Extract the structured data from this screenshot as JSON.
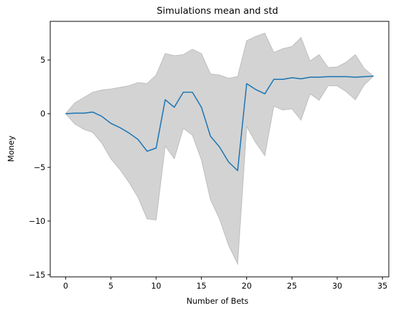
{
  "chart_data": {
    "type": "line",
    "title": "Simulations mean and std",
    "xlabel": "Number of Bets",
    "ylabel": "Money",
    "xlim": [
      -1.7,
      35.7
    ],
    "ylim": [
      -15.2,
      8.6
    ],
    "xticks": [
      0,
      5,
      10,
      15,
      20,
      25,
      30,
      35
    ],
    "yticks": [
      -15,
      -10,
      -5,
      0,
      5
    ],
    "ytick_labels": [
      "−15",
      "−10",
      "−5",
      "0",
      "5"
    ],
    "grid": false,
    "colors": {
      "line": "#1f77b4",
      "band": "#d3d3d3",
      "band_edge": "#bdbdbd"
    },
    "x": [
      0,
      1,
      2,
      3,
      4,
      5,
      6,
      7,
      8,
      9,
      10,
      11,
      12,
      13,
      14,
      15,
      16,
      17,
      18,
      19,
      20,
      21,
      22,
      23,
      24,
      25,
      26,
      27,
      28,
      29,
      30,
      31,
      32,
      33,
      34
    ],
    "series": [
      {
        "mean": [
          0,
          0.05,
          0.05,
          0.15,
          -0.25,
          -0.9,
          -1.3,
          -1.8,
          -2.4,
          -3.5,
          -3.2,
          1.3,
          0.6,
          2.0,
          2.0,
          0.6,
          -2.1,
          -3.1,
          -4.5,
          -5.3,
          2.8,
          2.25,
          1.85,
          3.2,
          3.2,
          3.35,
          3.25,
          3.4,
          3.4,
          3.45,
          3.45,
          3.45,
          3.4,
          3.45,
          3.5
        ],
        "upper": [
          0,
          1.0,
          1.5,
          2.0,
          2.2,
          2.3,
          2.45,
          2.6,
          2.9,
          2.8,
          3.6,
          5.6,
          5.4,
          5.5,
          6.0,
          5.6,
          3.7,
          3.6,
          3.3,
          3.45,
          6.8,
          7.2,
          7.5,
          5.7,
          6.05,
          6.25,
          7.1,
          4.9,
          5.5,
          4.3,
          4.35,
          4.8,
          5.5,
          4.2,
          3.5
        ],
        "lower": [
          0,
          -0.95,
          -1.45,
          -1.75,
          -2.75,
          -4.2,
          -5.2,
          -6.4,
          -7.8,
          -9.8,
          -9.9,
          -3.0,
          -4.2,
          -1.35,
          -2.0,
          -4.3,
          -8.0,
          -9.8,
          -12.25,
          -14.0,
          -1.2,
          -2.7,
          -3.9,
          0.7,
          0.35,
          0.45,
          -0.6,
          1.85,
          1.25,
          2.6,
          2.6,
          2.05,
          1.3,
          2.7,
          3.5
        ]
      }
    ]
  }
}
